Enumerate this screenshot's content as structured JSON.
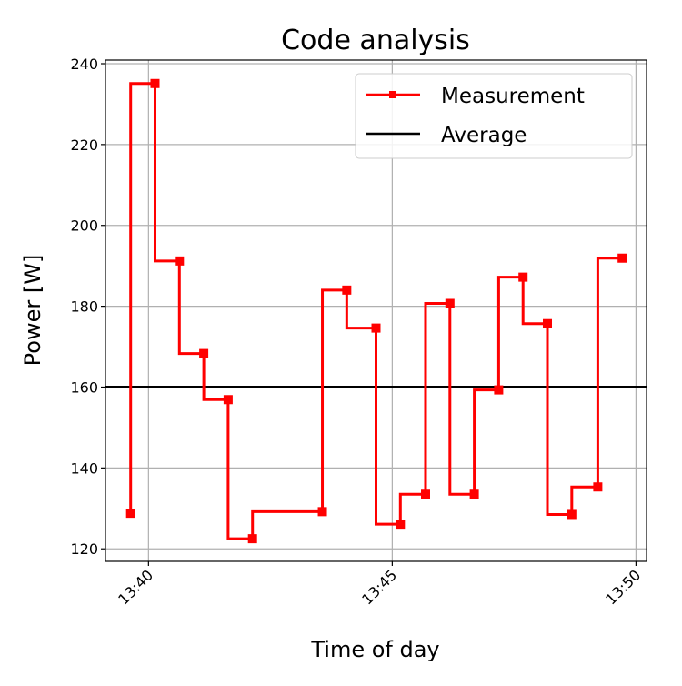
{
  "chart_data": {
    "type": "line",
    "step": "pre",
    "title": "Code analysis",
    "xlabel": "Time of day",
    "ylabel": "Power [W]",
    "xlim": [
      "13:39:07",
      "13:50:13"
    ],
    "ylim": [
      116.9,
      240.9
    ],
    "xticks": [
      "13:40",
      "13:45",
      "13:50"
    ],
    "yticks": [
      120,
      140,
      160,
      180,
      200,
      220,
      240
    ],
    "grid": true,
    "legend": {
      "placement": "top-right",
      "entries": [
        "Measurement",
        "Average"
      ]
    },
    "series": [
      {
        "name": "Measurement",
        "color": "#ff0000",
        "marker": "square",
        "x": [
          "13:39:38",
          "13:40:08",
          "13:40:38",
          "13:41:08",
          "13:41:38",
          "13:42:08",
          "13:43:34",
          "13:44:04",
          "13:44:40",
          "13:45:10",
          "13:45:41",
          "13:46:11",
          "13:46:41",
          "13:47:11",
          "13:47:41",
          "13:48:11",
          "13:48:41",
          "13:49:13",
          "13:49:43"
        ],
        "y": [
          128.8,
          235.1,
          191.2,
          168.3,
          156.9,
          122.5,
          129.2,
          184.0,
          174.6,
          126.1,
          133.5,
          180.7,
          133.5,
          159.3,
          187.2,
          175.7,
          128.5,
          135.3,
          191.9
        ]
      },
      {
        "name": "Average",
        "color": "#000000",
        "value": 160
      }
    ]
  }
}
